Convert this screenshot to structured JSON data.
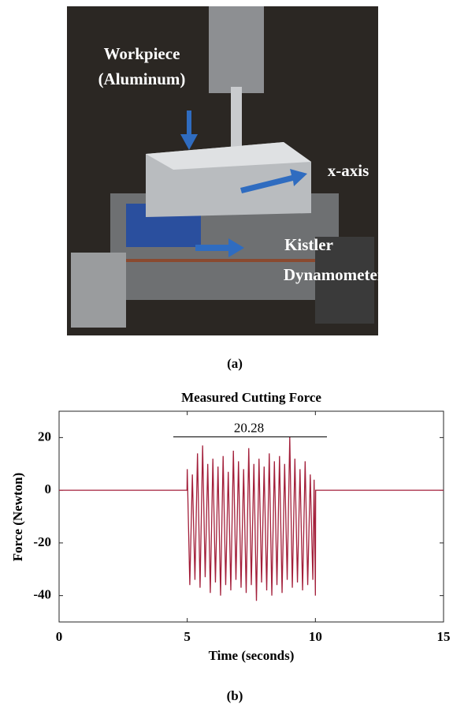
{
  "photo": {
    "labels": [
      "Workpiece",
      "(Aluminum)",
      "x-axis",
      "Kistler",
      "Dynamometer"
    ],
    "caption": "(a)"
  },
  "chart_data": {
    "type": "line",
    "title": "Measured Cutting Force",
    "caption": "(b)",
    "x_label": "Time (seconds)",
    "y_label": "Force (Newton)",
    "xlim": [
      0,
      15
    ],
    "ylim": [
      -50,
      30
    ],
    "xticks": [
      0,
      5,
      10,
      15
    ],
    "yticks": [
      -40,
      -20,
      0,
      20
    ],
    "grid": false,
    "annotation": {
      "value": 20.28,
      "label": "20.28"
    },
    "x": [
      0,
      4.99,
      5.0,
      5.1,
      5.2,
      5.3,
      5.4,
      5.5,
      5.6,
      5.7,
      5.8,
      5.9,
      6.0,
      6.1,
      6.2,
      6.3,
      6.4,
      6.5,
      6.6,
      6.7,
      6.8,
      6.9,
      7.0,
      7.1,
      7.2,
      7.3,
      7.4,
      7.5,
      7.6,
      7.7,
      7.8,
      7.9,
      8.0,
      8.1,
      8.2,
      8.3,
      8.4,
      8.5,
      8.6,
      8.7,
      8.8,
      8.9,
      9.0,
      9.1,
      9.2,
      9.3,
      9.4,
      9.5,
      9.6,
      9.7,
      9.8,
      9.9,
      9.95,
      10.0,
      10.01,
      15
    ],
    "series": [
      {
        "color": "#a31f3a",
        "values": [
          0,
          0,
          8,
          -36,
          6,
          -34,
          14,
          -37,
          17,
          -33,
          10,
          -39,
          12,
          -35,
          9,
          -40,
          13,
          -36,
          7,
          -38,
          15,
          -34,
          11,
          -37,
          8,
          -39,
          16,
          -36,
          10,
          -42,
          12,
          -35,
          9,
          -38,
          14,
          -40,
          11,
          -36,
          13,
          -39,
          10,
          -34,
          20.28,
          -37,
          12,
          -35,
          8,
          -38,
          11,
          -36,
          6,
          -34,
          4,
          -40,
          0,
          0
        ]
      }
    ]
  }
}
